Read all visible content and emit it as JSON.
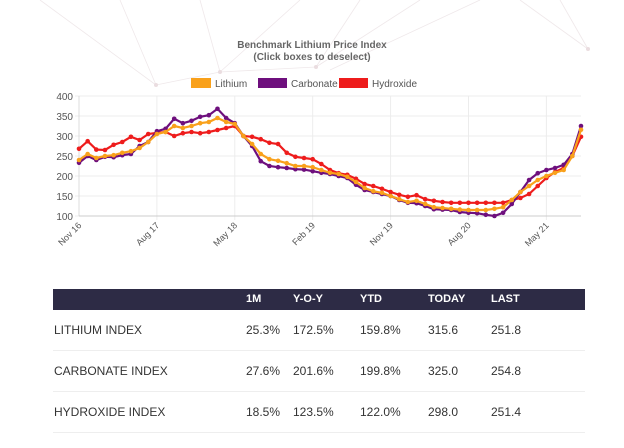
{
  "chart_data": {
    "type": "line",
    "title": "Benchmark Lithium Price Index",
    "subtitle": "(Click boxes to deselect)",
    "xlabel": "",
    "ylabel": "",
    "ylim": [
      100,
      400
    ],
    "yticks": [
      100,
      150,
      200,
      250,
      300,
      350,
      400
    ],
    "grid": true,
    "legend_placement": "top",
    "x": [
      "Nov 16",
      "Dec 16",
      "Jan 17",
      "Feb 17",
      "Mar 17",
      "Apr 17",
      "May 17",
      "Jun 17",
      "Jul 17",
      "Aug 17",
      "Sep 17",
      "Oct 17",
      "Nov 17",
      "Dec 17",
      "Jan 18",
      "Feb 18",
      "Mar 18",
      "Apr 18",
      "May 18",
      "Jun 18",
      "Jul 18",
      "Aug 18",
      "Sep 18",
      "Oct 18",
      "Nov 18",
      "Dec 18",
      "Jan 19",
      "Feb 19",
      "Mar 19",
      "Apr 19",
      "May 19",
      "Jun 19",
      "Jul 19",
      "Aug 19",
      "Sep 19",
      "Oct 19",
      "Nov 19",
      "Dec 19",
      "Jan 20",
      "Feb 20",
      "Mar 20",
      "Apr 20",
      "May 20",
      "Jun 20",
      "Jul 20",
      "Aug 20",
      "Sep 20",
      "Oct 20",
      "Nov 20",
      "Dec 20",
      "Jan 21",
      "Feb 21",
      "Mar 21",
      "Apr 21",
      "May 21",
      "Jun 21",
      "Jul 21",
      "Aug 21",
      "Sep 21"
    ],
    "xticks": [
      "Nov 16",
      "Aug 17",
      "May 18",
      "Feb 19",
      "Nov 19",
      "Aug 20",
      "May 21"
    ],
    "series": [
      {
        "name": "Lithium",
        "color": "#f9a11b",
        "values": [
          240,
          255,
          245,
          250,
          252,
          258,
          262,
          270,
          285,
          305,
          310,
          325,
          320,
          325,
          332,
          335,
          345,
          335,
          330,
          300,
          280,
          255,
          242,
          238,
          232,
          225,
          225,
          222,
          215,
          208,
          205,
          198,
          185,
          170,
          162,
          158,
          150,
          142,
          135,
          138,
          130,
          122,
          120,
          118,
          116,
          115,
          115,
          115,
          118,
          122,
          140,
          160,
          175,
          190,
          200,
          208,
          215,
          250,
          315.6
        ]
      },
      {
        "name": "Carbonate",
        "color": "#6e0f7d",
        "values": [
          233,
          250,
          240,
          248,
          247,
          252,
          255,
          275,
          285,
          312,
          318,
          343,
          332,
          338,
          348,
          352,
          368,
          345,
          332,
          300,
          275,
          237,
          225,
          222,
          220,
          217,
          216,
          212,
          208,
          205,
          200,
          195,
          178,
          165,
          160,
          155,
          150,
          140,
          133,
          132,
          125,
          117,
          116,
          115,
          110,
          108,
          107,
          103,
          100,
          108,
          130,
          160,
          190,
          207,
          215,
          220,
          228,
          255,
          325
        ]
      },
      {
        "name": "Hydroxide",
        "color": "#ee1c1c",
        "values": [
          268,
          287,
          266,
          265,
          278,
          285,
          298,
          290,
          305,
          308,
          310,
          300,
          307,
          310,
          307,
          310,
          315,
          320,
          325,
          300,
          298,
          292,
          283,
          280,
          258,
          248,
          245,
          242,
          230,
          215,
          207,
          203,
          193,
          180,
          175,
          168,
          160,
          153,
          148,
          152,
          142,
          138,
          135,
          133,
          133,
          133,
          133,
          133,
          133,
          133,
          140,
          145,
          155,
          175,
          195,
          210,
          220,
          250,
          298
        ]
      }
    ]
  },
  "table": {
    "headers": [
      "",
      "1M",
      "Y-O-Y",
      "YTD",
      "TODAY",
      "LAST"
    ],
    "rows": [
      [
        "LITHIUM INDEX",
        "25.3%",
        "172.5%",
        "159.8%",
        "315.6",
        "251.8"
      ],
      [
        "CARBONATE INDEX",
        "27.6%",
        "201.6%",
        "199.8%",
        "325.0",
        "254.8"
      ],
      [
        "HYDROXIDE INDEX",
        "18.5%",
        "123.5%",
        "122.0%",
        "298.0",
        "251.4"
      ]
    ]
  }
}
